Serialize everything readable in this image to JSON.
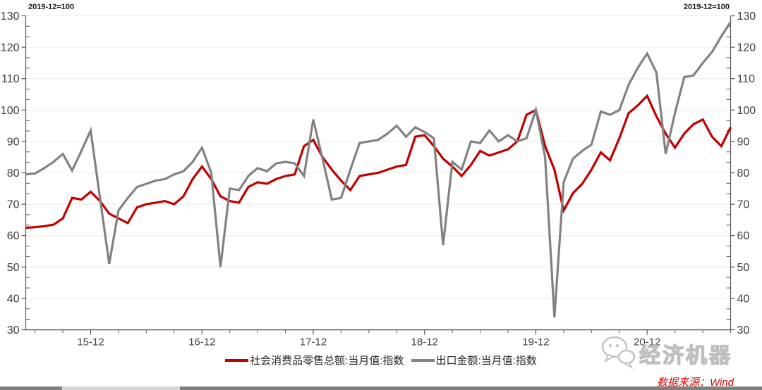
{
  "annotations": {
    "left": "2019-12=100",
    "right": "2019-12=100"
  },
  "watermark": {
    "label": "经济机器",
    "icon": "chat-bubbles-icon"
  },
  "source_note": "数据来源：Wind",
  "colors": {
    "retail_line": "#c00000",
    "export_line": "#828282",
    "source_text": "#e60000",
    "axis_line": "#595959",
    "tick_label": "#404040",
    "gridline": "#ececec"
  },
  "chart_data": {
    "type": "line",
    "title": "",
    "xlabel": "",
    "ylabel": "",
    "ylim": [
      30,
      130
    ],
    "yticks": [
      30,
      40,
      50,
      60,
      70,
      80,
      90,
      100,
      110,
      120,
      130
    ],
    "grid": "horizontal",
    "legend_position": "bottom",
    "xtick_labels": [
      "15-12",
      "16-12",
      "17-12",
      "18-12",
      "19-12",
      "20-12"
    ],
    "x": [
      "2015-05",
      "2015-06",
      "2015-07",
      "2015-08",
      "2015-09",
      "2015-10",
      "2015-11",
      "2015-12",
      "2016-01",
      "2016-02",
      "2016-03",
      "2016-04",
      "2016-05",
      "2016-06",
      "2016-07",
      "2016-08",
      "2016-09",
      "2016-10",
      "2016-11",
      "2016-12",
      "2017-01",
      "2017-02",
      "2017-03",
      "2017-04",
      "2017-05",
      "2017-06",
      "2017-07",
      "2017-08",
      "2017-09",
      "2017-10",
      "2017-11",
      "2017-12",
      "2018-01",
      "2018-02",
      "2018-03",
      "2018-04",
      "2018-05",
      "2018-06",
      "2018-07",
      "2018-08",
      "2018-09",
      "2018-10",
      "2018-11",
      "2018-12",
      "2019-01",
      "2019-02",
      "2019-03",
      "2019-04",
      "2019-05",
      "2019-06",
      "2019-07",
      "2019-08",
      "2019-09",
      "2019-10",
      "2019-11",
      "2019-12",
      "2020-01",
      "2020-02",
      "2020-03",
      "2020-04",
      "2020-05",
      "2020-06",
      "2020-07",
      "2020-08",
      "2020-09",
      "2020-10",
      "2020-11",
      "2020-12",
      "2021-01",
      "2021-02",
      "2021-03",
      "2021-04",
      "2021-05",
      "2021-06",
      "2021-07",
      "2021-08",
      "2021-09"
    ],
    "series": [
      {
        "name": "社会消费品零售总额:当月值:指数",
        "color": "#c00000",
        "values": [
          62.5,
          62.7,
          63,
          63.5,
          65.5,
          72,
          71.5,
          74,
          71,
          67,
          65.5,
          64,
          69,
          70,
          70.5,
          71,
          70,
          72.5,
          78,
          82,
          78,
          72.5,
          71,
          70.5,
          75.5,
          77,
          76.5,
          78,
          79,
          79.5,
          88.5,
          90.5,
          85,
          81,
          77.5,
          74.5,
          79,
          79.5,
          80,
          81,
          82,
          82.5,
          91.5,
          92,
          88.5,
          84.5,
          82,
          79,
          82.5,
          87,
          85.5,
          86.5,
          87.5,
          90,
          98.5,
          100,
          88.5,
          81,
          68,
          73.5,
          76.5,
          81,
          86.5,
          84,
          91,
          99,
          101.5,
          104.5,
          98,
          92.5,
          88,
          92.5,
          95.5,
          97,
          91.5,
          88.5,
          94.5
        ]
      },
      {
        "name": "出口金额:当月值:指数",
        "color": "#828282",
        "values": [
          79.5,
          79.8,
          81.5,
          83.5,
          86,
          80.7,
          87,
          93.5,
          72,
          51,
          68,
          72,
          75.5,
          76.5,
          77.5,
          78,
          79.5,
          80.5,
          83.5,
          88,
          80,
          50,
          75,
          74.5,
          79,
          81.5,
          80.5,
          83,
          83.5,
          83,
          79,
          97,
          84.5,
          71.5,
          72,
          81,
          89.5,
          90,
          90.5,
          92.5,
          95,
          91.5,
          94.5,
          93,
          91,
          57,
          83.5,
          81,
          90,
          89.5,
          93.5,
          90,
          92,
          90,
          91,
          100,
          85,
          34,
          77,
          84.5,
          87,
          89,
          99.5,
          98.5,
          100,
          108,
          113.5,
          118,
          112,
          86,
          99,
          110.5,
          111,
          115,
          118.5,
          123.5,
          128
        ]
      }
    ]
  }
}
